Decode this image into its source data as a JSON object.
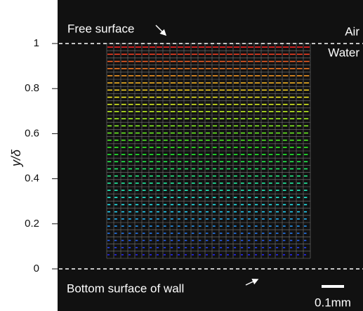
{
  "chart_data": {
    "type": "vector-field",
    "ylabel": "y/δ",
    "ylim": [
      0,
      1
    ],
    "yticks": [
      0,
      0.2,
      0.4,
      0.6,
      0.8,
      1
    ],
    "annotations": [
      "Free surface",
      "Air",
      "Water",
      "Bottom surface of wall"
    ],
    "scale_bar": "0.1mm"
  }
}
